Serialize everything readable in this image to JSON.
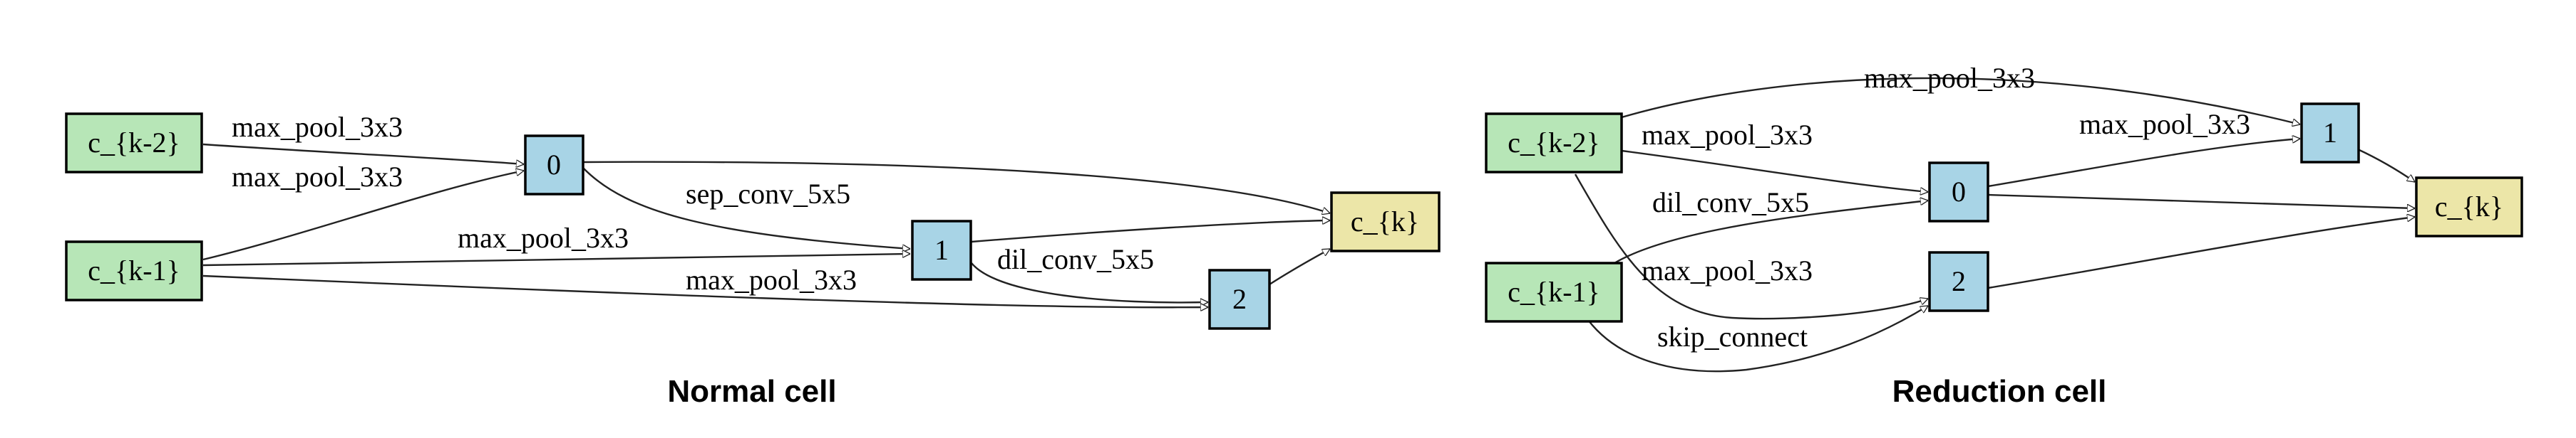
{
  "colors": {
    "input_node": "#b7e6b7",
    "intermediate_node": "#a8d4e6",
    "output_node": "#ece6a8",
    "edge": "#222222"
  },
  "normal": {
    "caption": "Normal cell",
    "nodes": {
      "ck2": "c_{k-2}",
      "ck1": "c_{k-1}",
      "n0": "0",
      "n1": "1",
      "n2": "2",
      "out": "c_{k}"
    },
    "edges": [
      {
        "from": "c_{k-2}",
        "to": "0",
        "label": "max_pool_3x3"
      },
      {
        "from": "c_{k-1}",
        "to": "0",
        "label": "max_pool_3x3"
      },
      {
        "from": "0",
        "to": "1",
        "label": "sep_conv_5x5"
      },
      {
        "from": "c_{k-1}",
        "to": "1",
        "label": "max_pool_3x3"
      },
      {
        "from": "1",
        "to": "2",
        "label": "dil_conv_5x5"
      },
      {
        "from": "c_{k-1}",
        "to": "2",
        "label": "max_pool_3x3"
      },
      {
        "from": "0",
        "to": "c_{k}",
        "label": ""
      },
      {
        "from": "1",
        "to": "c_{k}",
        "label": ""
      },
      {
        "from": "2",
        "to": "c_{k}",
        "label": ""
      }
    ]
  },
  "reduction": {
    "caption": "Reduction cell",
    "nodes": {
      "ck2": "c_{k-2}",
      "ck1": "c_{k-1}",
      "n0": "0",
      "n1": "1",
      "n2": "2",
      "out": "c_{k}"
    },
    "edges": [
      {
        "from": "c_{k-2}",
        "to": "1",
        "label": "max_pool_3x3"
      },
      {
        "from": "c_{k-2}",
        "to": "0",
        "label": "max_pool_3x3"
      },
      {
        "from": "0",
        "to": "1",
        "label": "max_pool_3x3"
      },
      {
        "from": "c_{k-1}",
        "to": "0",
        "label": "dil_conv_5x5"
      },
      {
        "from": "c_{k-2}",
        "to": "2",
        "label": "max_pool_3x3"
      },
      {
        "from": "c_{k-1}",
        "to": "2",
        "label": "skip_connect"
      },
      {
        "from": "0",
        "to": "c_{k}",
        "label": ""
      },
      {
        "from": "1",
        "to": "c_{k}",
        "label": ""
      },
      {
        "from": "2",
        "to": "c_{k}",
        "label": ""
      }
    ]
  }
}
